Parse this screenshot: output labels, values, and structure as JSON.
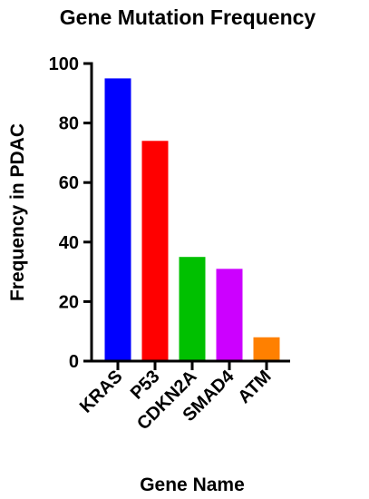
{
  "chart_data": {
    "type": "bar",
    "title": "Gene Mutation Frequency",
    "xlabel": "Gene Name",
    "ylabel": "Frequency in PDAC",
    "categories": [
      "KRAS",
      "P53",
      "CDKN2A",
      "SMAD4",
      "ATM"
    ],
    "values": [
      95,
      74,
      35,
      31,
      8
    ],
    "colors": [
      "#0000ff",
      "#ff0000",
      "#00c000",
      "#cc00ff",
      "#ff8000"
    ],
    "ylim": [
      0,
      100
    ],
    "yticks": [
      "0",
      "20",
      "40",
      "60",
      "80",
      "100"
    ],
    "grid": false,
    "legend": "none"
  }
}
